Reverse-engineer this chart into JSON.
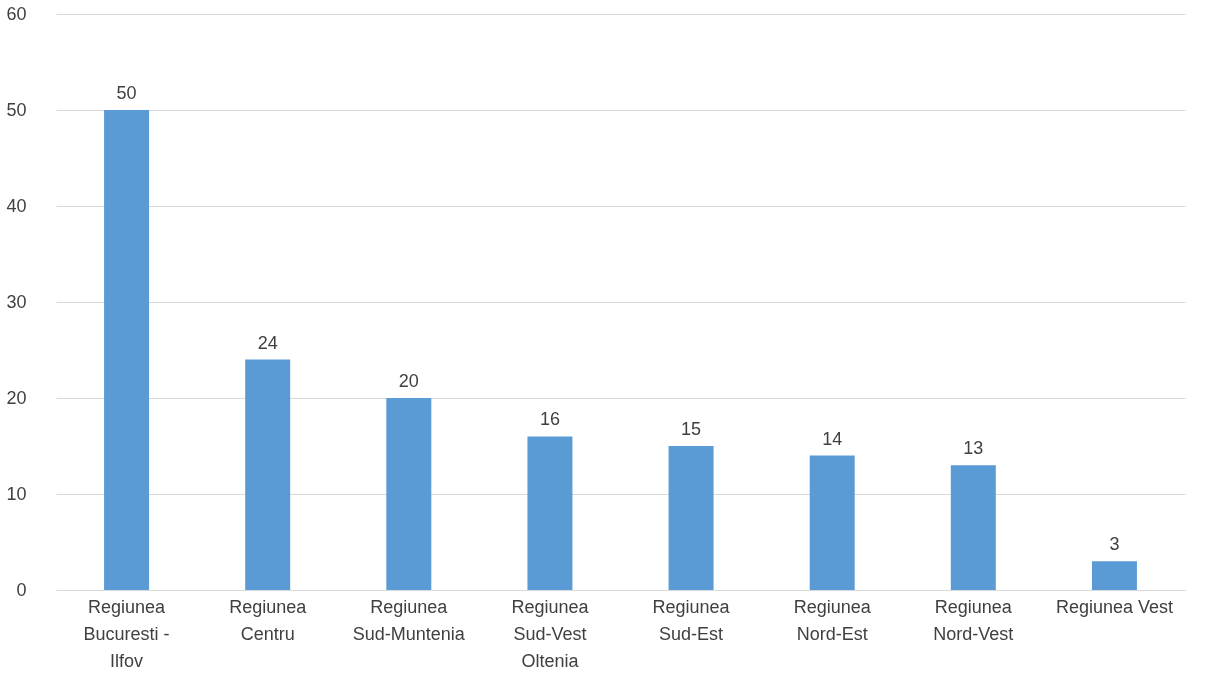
{
  "chart_data": {
    "type": "bar",
    "categories": [
      "Regiunea Bucuresti - Ilfov",
      "Regiunea Centru",
      "Regiunea Sud-Muntenia",
      "Regiunea Sud-Vest Oltenia",
      "Regiunea Sud-Est",
      "Regiunea Nord-Est",
      "Regiunea Nord-Vest",
      "Regiunea Vest"
    ],
    "values": [
      50,
      24,
      20,
      16,
      15,
      14,
      13,
      3
    ],
    "color": "#5b9bd5",
    "ylim": [
      0,
      60
    ],
    "yticks": [
      0,
      10,
      20,
      30,
      40,
      50,
      60
    ],
    "grid": "y",
    "data_labels": true
  }
}
